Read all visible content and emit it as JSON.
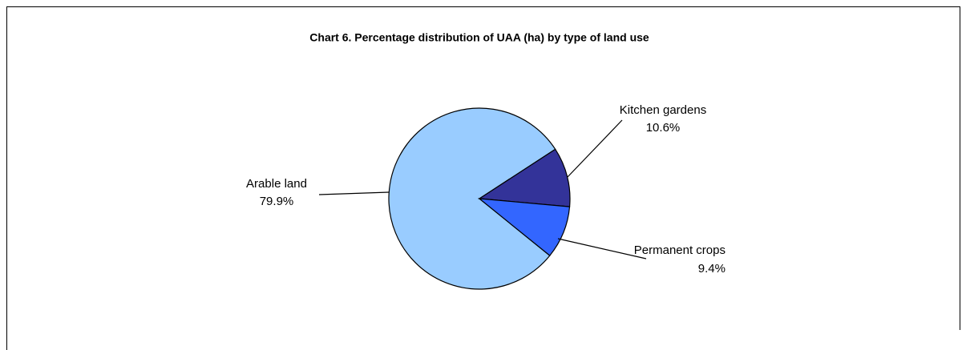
{
  "chart_data": {
    "type": "pie",
    "title": "Chart 6.  Percentage distribution of UAA (ha) by type of land use",
    "categories": [
      "Arable land",
      "Kitchen gardens",
      "Permanent crops"
    ],
    "values": [
      79.9,
      10.6,
      9.4
    ],
    "value_labels": [
      "79.9%",
      "10.6%",
      "9.4%"
    ],
    "colors": [
      "#99ccff",
      "#333399",
      "#3366ff"
    ]
  }
}
